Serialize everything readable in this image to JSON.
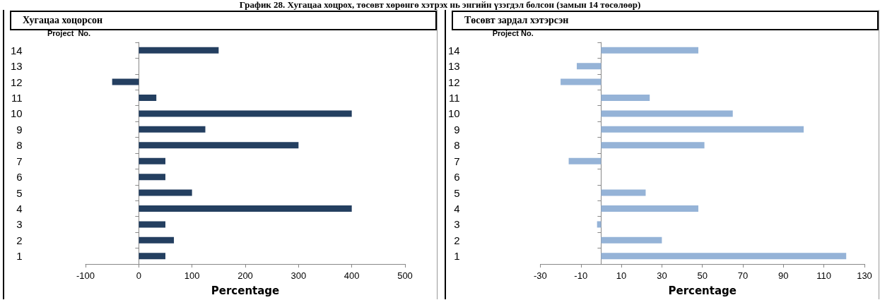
{
  "chart_data": [
    {
      "type": "bar",
      "orientation": "horizontal",
      "title": "Хугацаа хоцорсон",
      "annotations": [
        "График 28. Хугацаа хоцрох, төсөвт хөрөнгө хэтрэх нь энгийн үзэгдэл болсон (замын 14 төсөлөөр)"
      ],
      "xlabel": "Percentage",
      "ylabel": "Project  No.",
      "categories": [
        "14",
        "13",
        "12",
        "11",
        "10",
        "9",
        "8",
        "7",
        "6",
        "5",
        "4",
        "3",
        "2",
        "1"
      ],
      "values": [
        150,
        0,
        -50,
        33,
        400,
        125,
        300,
        50,
        50,
        100,
        400,
        50,
        66,
        50
      ],
      "color": "#243f60",
      "xlim": [
        -100,
        500
      ],
      "xticks": [
        -100,
        0,
        100,
        200,
        300,
        400,
        500
      ]
    },
    {
      "type": "bar",
      "orientation": "horizontal",
      "title": "Төсөвт зардал хэтэрсэн",
      "xlabel": "Percentage",
      "ylabel": "Project No.",
      "categories": [
        "14",
        "13",
        "12",
        "11",
        "10",
        "9",
        "8",
        "7",
        "6",
        "5",
        "4",
        "3",
        "2",
        "1"
      ],
      "values": [
        48,
        -12,
        -20,
        24,
        65,
        100,
        51,
        -16,
        0,
        22,
        48,
        -2,
        30,
        121
      ],
      "color": "#95b3d7",
      "xlim": [
        -30,
        130
      ],
      "xticks": [
        -30,
        -10,
        10,
        30,
        50,
        70,
        90,
        110,
        130
      ]
    }
  ]
}
